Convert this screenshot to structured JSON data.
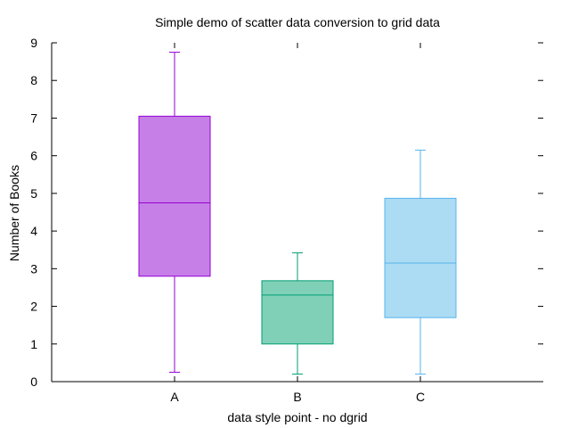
{
  "chart_data": {
    "type": "box",
    "title": "Simple demo of scatter data conversion to grid data",
    "xlabel": "data style point - no dgrid",
    "ylabel": "Number of Books",
    "ylim": [
      0,
      9
    ],
    "yticks": [
      "0",
      "1",
      "2",
      "3",
      "4",
      "5",
      "6",
      "7",
      "8",
      "9"
    ],
    "grid": false,
    "categories": [
      "A",
      "B",
      "C"
    ],
    "boxes": [
      {
        "category": "A",
        "min": 0.25,
        "q1": 2.8,
        "median": 4.75,
        "q3": 7.05,
        "max": 8.75,
        "fill": "#c77fe8",
        "stroke": "#9400d3"
      },
      {
        "category": "B",
        "min": 0.2,
        "q1": 1.0,
        "median": 2.3,
        "q3": 2.68,
        "max": 3.42,
        "fill": "#80d0b8",
        "stroke": "#009e73"
      },
      {
        "category": "C",
        "min": 0.2,
        "q1": 1.7,
        "median": 3.15,
        "q3": 4.87,
        "max": 6.15,
        "fill": "#acdbf4",
        "stroke": "#56b4e9"
      }
    ]
  }
}
